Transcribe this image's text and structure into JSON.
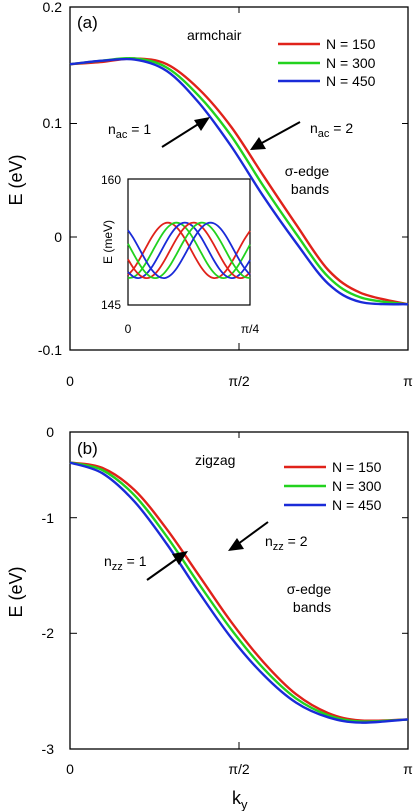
{
  "colors": {
    "N150": "#e0221a",
    "N300": "#22d21e",
    "N450": "#1a2bd8",
    "axis": "#000000"
  },
  "chart_data": [
    {
      "type": "line",
      "panel": "(a)",
      "title": "armchair",
      "ylabel": "E (eV)",
      "xlabel": "",
      "xlim": [
        0,
        3.14159
      ],
      "ylim": [
        -0.1,
        0.2
      ],
      "x_tick_labels": [
        "0",
        "π/2",
        "π"
      ],
      "y_tick_labels": [
        "-0.1",
        "0",
        "0.1",
        "0.2"
      ],
      "legend": {
        "placement": "top-right",
        "entries": [
          "N = 150",
          "N = 300",
          "N = 450"
        ]
      },
      "series": [
        {
          "name": "N = 150",
          "x": [
            0,
            0.3,
            0.6,
            0.9,
            1.2,
            1.5,
            1.8,
            2.1,
            2.4,
            2.7,
            3.14159
          ],
          "y": [
            0.15,
            0.152,
            0.155,
            0.15,
            0.128,
            0.095,
            0.052,
            0.01,
            -0.03,
            -0.05,
            -0.06
          ]
        },
        {
          "name": "N = 300",
          "x": [
            0,
            0.3,
            0.6,
            0.9,
            1.2,
            1.5,
            1.8,
            2.1,
            2.4,
            2.7,
            3.14159
          ],
          "y": [
            0.15,
            0.153,
            0.155,
            0.147,
            0.122,
            0.087,
            0.043,
            0.002,
            -0.036,
            -0.054,
            -0.06
          ]
        },
        {
          "name": "N = 450",
          "x": [
            0,
            0.3,
            0.6,
            0.9,
            1.2,
            1.5,
            1.8,
            2.1,
            2.4,
            2.7,
            3.14159
          ],
          "y": [
            0.15,
            0.153,
            0.154,
            0.144,
            0.116,
            0.078,
            0.034,
            -0.006,
            -0.042,
            -0.058,
            -0.06
          ]
        }
      ],
      "annotations": [
        "n_ac = 1",
        "n_ac = 2",
        "σ-edge bands"
      ],
      "inset": {
        "ylabel": "E (meV)",
        "ylim": [
          145,
          160
        ],
        "y_tick_labels": [
          "145",
          "160"
        ],
        "x_tick_labels": [
          "0",
          "π/4"
        ]
      }
    },
    {
      "type": "line",
      "panel": "(b)",
      "title": "zigzag",
      "ylabel": "E (eV)",
      "xlabel": "k_y",
      "xlim": [
        0,
        3.14159
      ],
      "ylim": [
        -3,
        0
      ],
      "x_tick_labels": [
        "0",
        "π/2",
        "π"
      ],
      "y_tick_labels": [
        "0",
        "-1",
        "-2",
        "-3"
      ],
      "legend": {
        "placement": "top-right",
        "entries": [
          "N = 150",
          "N = 300",
          "N = 450"
        ]
      },
      "series": [
        {
          "name": "N = 150",
          "x": [
            0,
            0.3,
            0.6,
            0.9,
            1.2,
            1.5,
            1.8,
            2.1,
            2.4,
            2.7,
            3.14159
          ],
          "y": [
            -0.29,
            -0.34,
            -0.55,
            -0.92,
            -1.36,
            -1.8,
            -2.18,
            -2.48,
            -2.66,
            -2.73,
            -2.72
          ]
        },
        {
          "name": "N = 300",
          "x": [
            0,
            0.3,
            0.6,
            0.9,
            1.2,
            1.5,
            1.8,
            2.1,
            2.4,
            2.7,
            3.14159
          ],
          "y": [
            -0.29,
            -0.36,
            -0.6,
            -0.99,
            -1.44,
            -1.87,
            -2.24,
            -2.52,
            -2.68,
            -2.74,
            -2.72
          ]
        },
        {
          "name": "N = 450",
          "x": [
            0,
            0.3,
            0.6,
            0.9,
            1.2,
            1.5,
            1.8,
            2.1,
            2.4,
            2.7,
            3.14159
          ],
          "y": [
            -0.29,
            -0.39,
            -0.66,
            -1.06,
            -1.52,
            -1.95,
            -2.3,
            -2.56,
            -2.7,
            -2.75,
            -2.72
          ]
        }
      ],
      "annotations": [
        "n_zz = 1",
        "n_zz = 2",
        "σ-edge bands"
      ]
    }
  ],
  "text": {
    "a_label": "(a)",
    "a_title": "armchair",
    "b_label": "(b)",
    "b_title": "zigzag",
    "ylabel": "E (eV)",
    "xlabel_k": "k",
    "xlabel_sub": "y",
    "x0": "0",
    "xhalf": "π/2",
    "xpi": "π",
    "a_y1": "0.2",
    "a_y2": "0.1",
    "a_y3": "0",
    "a_y4": "-0.1",
    "b_y1": "0",
    "b_y2": "-1",
    "b_y3": "-2",
    "b_y4": "-3",
    "leg1": "N = 150",
    "leg2": "N = 300",
    "leg3": "N = 450",
    "nac1_pre": "n",
    "nac1_sub": "ac",
    "nac1_post": " = 1",
    "nac2_pre": "n",
    "nac2_sub": "ac",
    "nac2_post": " = 2",
    "nzz1_pre": "n",
    "nzz1_sub": "zz",
    "nzz1_post": " = 1",
    "nzz2_pre": "n",
    "nzz2_sub": "zz",
    "nzz2_post": " = 2",
    "sigma1": "σ-edge",
    "bands1": "bands",
    "sigma2": "σ-edge",
    "bands2": "bands",
    "inset_ylabel": "E (meV)",
    "inset_y_top": "160",
    "inset_y_bot": "145",
    "inset_x0": "0",
    "inset_xq": "π/4"
  }
}
